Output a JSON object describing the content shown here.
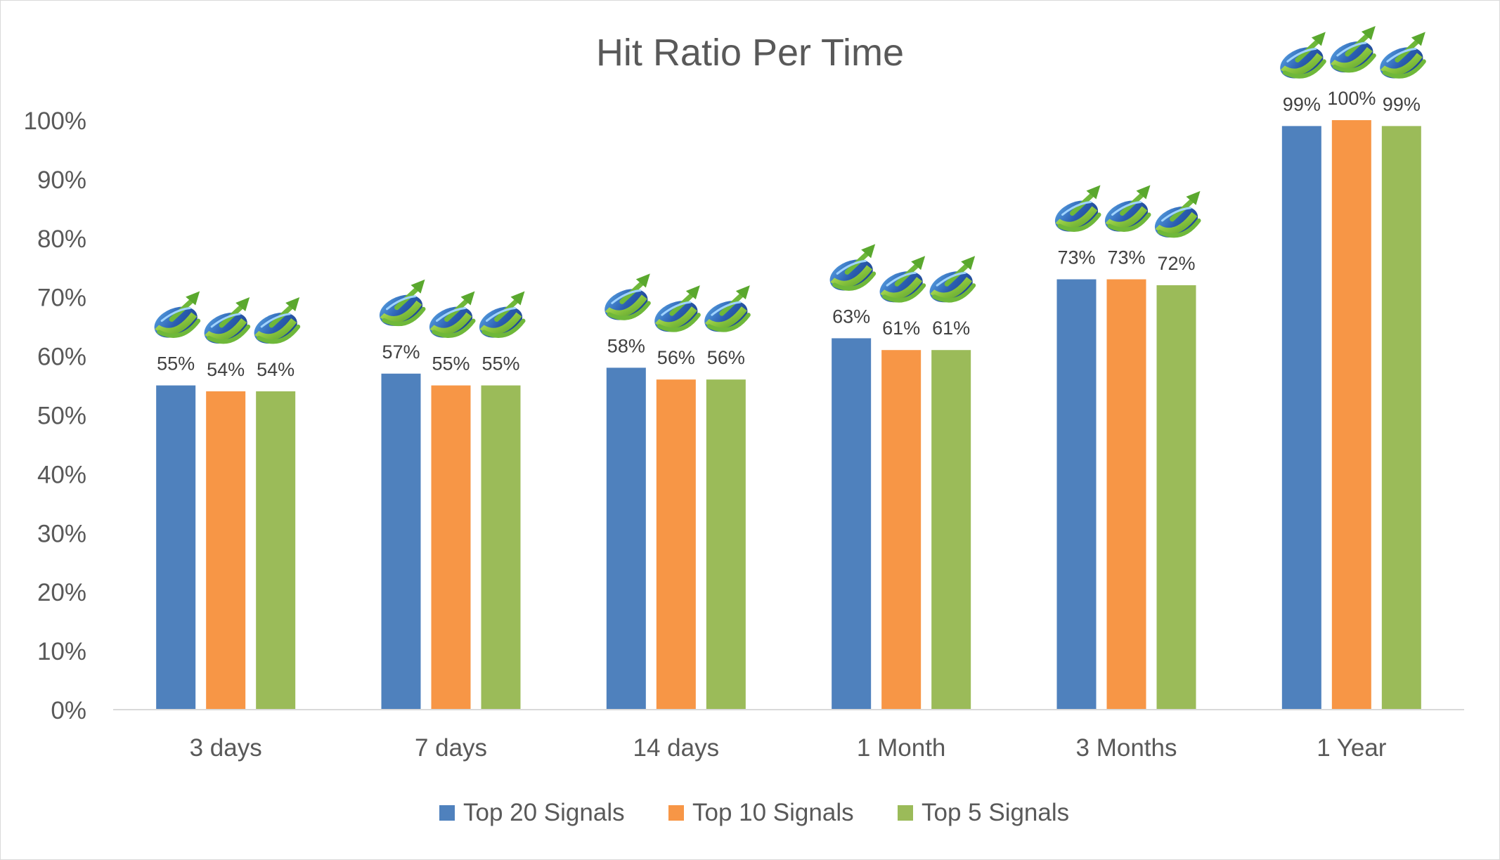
{
  "chart_data": {
    "type": "bar",
    "title": "Hit Ratio Per Time",
    "xlabel": "",
    "ylabel": "",
    "categories": [
      "3 days",
      "7 days",
      "14 days",
      "1 Month",
      "3 Months",
      "1 Year"
    ],
    "series": [
      {
        "name": "Top 20 Signals",
        "color": "#4f81bd",
        "values": [
          55,
          57,
          58,
          63,
          73,
          99
        ]
      },
      {
        "name": "Top 10 Signals",
        "color": "#f79646",
        "values": [
          54,
          55,
          56,
          61,
          73,
          100
        ]
      },
      {
        "name": "Top 5 Signals",
        "color": "#9bbb59",
        "values": [
          54,
          55,
          56,
          61,
          72,
          99
        ]
      }
    ],
    "data_labels": [
      [
        "55%",
        "57%",
        "58%",
        "63%",
        "73%",
        "99%"
      ],
      [
        "54%",
        "55%",
        "56%",
        "61%",
        "73%",
        "100%"
      ],
      [
        "54%",
        "55%",
        "56%",
        "61%",
        "72%",
        "99%"
      ]
    ],
    "ylim": [
      0,
      100
    ],
    "yticks": [
      0,
      10,
      20,
      30,
      40,
      50,
      60,
      70,
      80,
      90,
      100
    ],
    "ytick_labels": [
      "0%",
      "10%",
      "20%",
      "30%",
      "40%",
      "50%",
      "60%",
      "70%",
      "80%",
      "90%",
      "100%"
    ],
    "grid": false,
    "legend_position": "bottom-center",
    "marker_icon": "rising-arrow-logo-icon"
  }
}
